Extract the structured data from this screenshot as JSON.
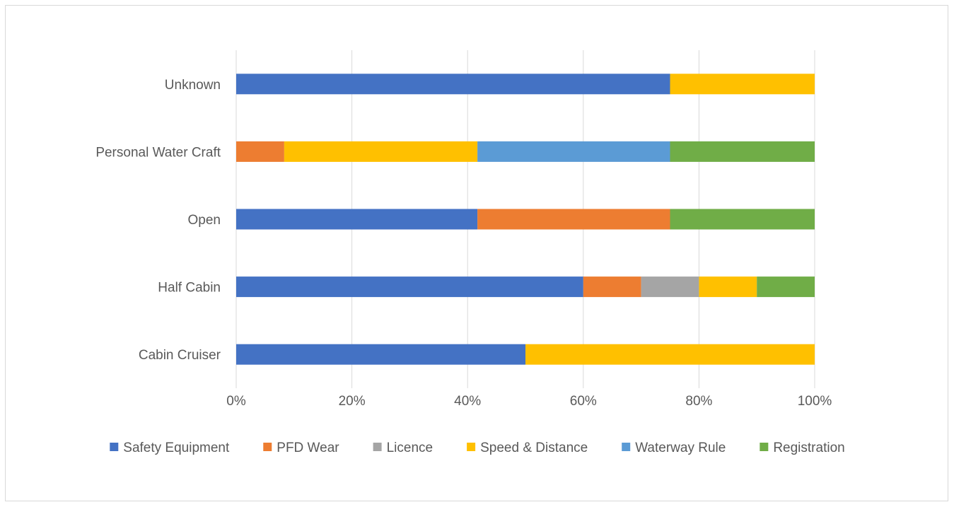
{
  "chart_data": {
    "type": "bar",
    "orientation": "horizontal",
    "stacking": "percent",
    "categories": [
      "Cabin Cruiser",
      "Half Cabin",
      "Open",
      "Personal Water Craft",
      "Unknown"
    ],
    "series": [
      {
        "name": "Safety Equipment",
        "color": "#4472C4",
        "values": [
          50,
          60,
          41.7,
          0,
          75
        ]
      },
      {
        "name": "PFD Wear",
        "color": "#ED7D31",
        "values": [
          0,
          10,
          33.3,
          8.3,
          0
        ]
      },
      {
        "name": "Licence",
        "color": "#A5A5A5",
        "values": [
          0,
          10,
          0,
          0,
          0
        ]
      },
      {
        "name": "Speed & Distance",
        "color": "#FFC000",
        "values": [
          50,
          10,
          0,
          33.4,
          25
        ]
      },
      {
        "name": "Waterway Rule",
        "color": "#5B9BD5",
        "values": [
          0,
          0,
          0,
          33.3,
          0
        ]
      },
      {
        "name": "Registration",
        "color": "#70AD47",
        "values": [
          0,
          10,
          25,
          25,
          0
        ]
      }
    ],
    "x_ticks": [
      "0%",
      "20%",
      "40%",
      "60%",
      "80%",
      "100%"
    ],
    "xlim": [
      0,
      100
    ],
    "grid": true,
    "legend": "bottom"
  }
}
